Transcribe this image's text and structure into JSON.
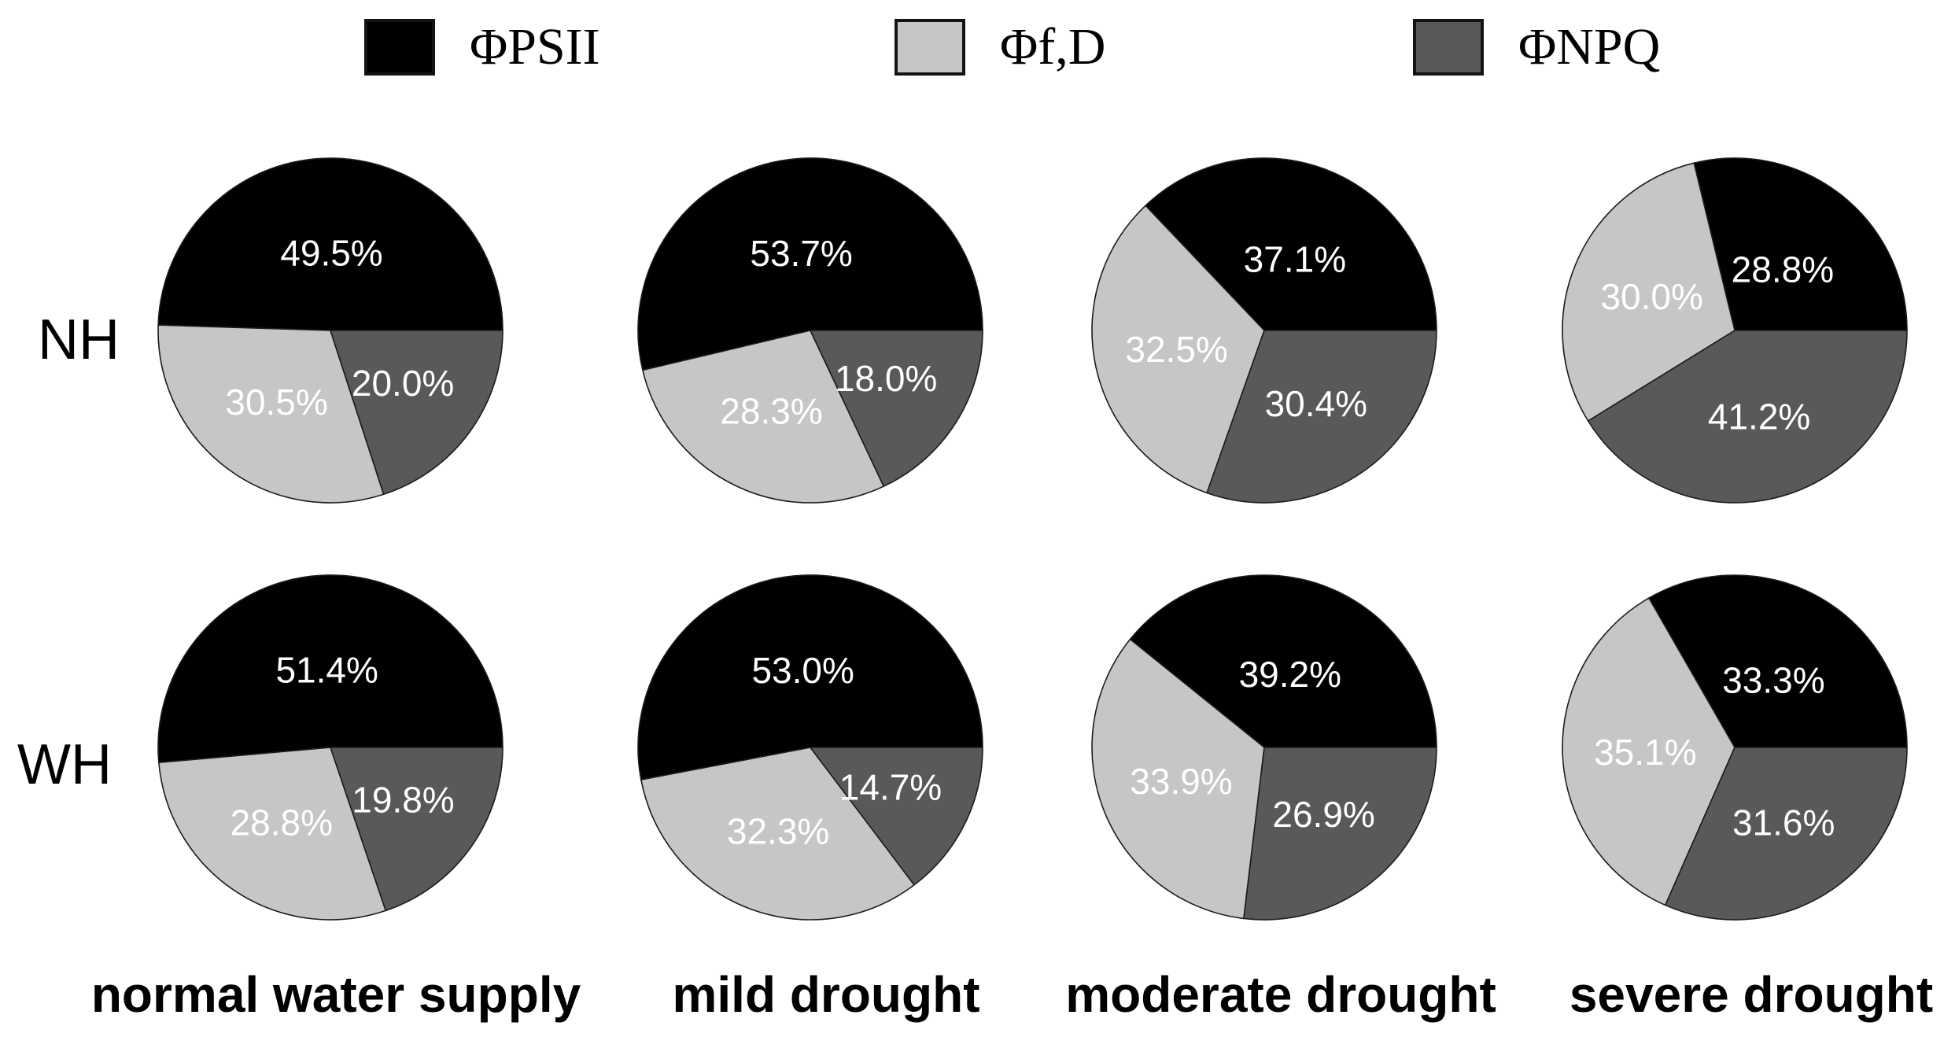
{
  "legend": {
    "items": [
      {
        "label": "ΦPSII",
        "color": "#000000"
      },
      {
        "label": "Φf,D",
        "color": "#c6c6c6"
      },
      {
        "label": "ΦNPQ",
        "color": "#595959"
      }
    ]
  },
  "row_labels": [
    "NH",
    "WH"
  ],
  "column_labels": [
    "normal water supply",
    "mild drought",
    "moderate drought",
    "severe drought"
  ],
  "chart_data": {
    "type": "pie",
    "layout": "2 rows (NH, WH) x 4 columns (water treatments), 8 pies total",
    "slice_order": "slices start at 3 o'clock and sweep counterclockwise in order ΦPSII, Φf,D, ΦNPQ",
    "legend": [
      "ΦPSII",
      "Φf,D",
      "ΦNPQ"
    ],
    "colors": [
      "#000000",
      "#c6c6c6",
      "#595959"
    ],
    "rows": [
      "NH",
      "WH"
    ],
    "columns": [
      "normal water supply",
      "mild drought",
      "moderate drought",
      "severe drought"
    ],
    "value_format": "one decimal place + %",
    "label_color": "#ffffff",
    "pies": [
      {
        "row": "NH",
        "column": "normal water supply",
        "values": [
          49.5,
          30.5,
          20.0
        ]
      },
      {
        "row": "NH",
        "column": "mild drought",
        "values": [
          53.7,
          28.3,
          18.0
        ]
      },
      {
        "row": "NH",
        "column": "moderate drought",
        "values": [
          37.1,
          32.5,
          30.4
        ]
      },
      {
        "row": "NH",
        "column": "severe drought",
        "values": [
          28.8,
          30.0,
          41.2
        ]
      },
      {
        "row": "WH",
        "column": "normal water supply",
        "values": [
          51.4,
          28.8,
          19.8
        ]
      },
      {
        "row": "WH",
        "column": "mild drought",
        "values": [
          53.0,
          32.3,
          14.7
        ]
      },
      {
        "row": "WH",
        "column": "moderate drought",
        "values": [
          39.2,
          33.9,
          26.9
        ]
      },
      {
        "row": "WH",
        "column": "severe drought",
        "values": [
          33.3,
          35.1,
          31.6
        ]
      }
    ]
  }
}
